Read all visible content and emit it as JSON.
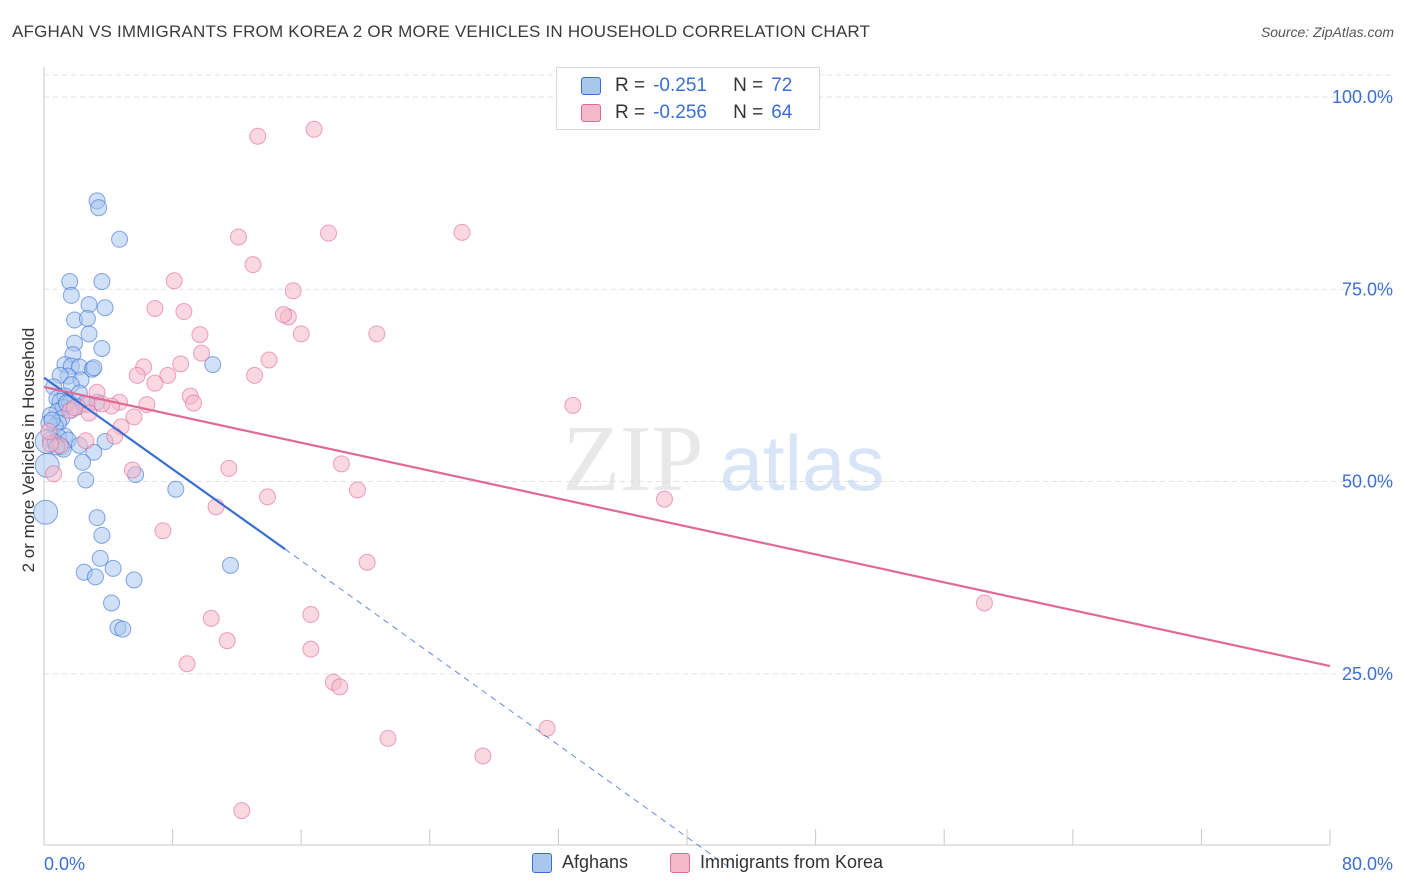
{
  "title": "AFGHAN VS IMMIGRANTS FROM KOREA 2 OR MORE VEHICLES IN HOUSEHOLD CORRELATION CHART",
  "source": "Source: ZipAtlas.com",
  "watermark": {
    "zip": "ZIP",
    "atlas": "atlas"
  },
  "stats": [
    {
      "r_label": "R =",
      "r_value": "-0.251",
      "n_label": "N =",
      "n_value": "72"
    },
    {
      "r_label": "R =",
      "r_value": "-0.256",
      "n_label": "N =",
      "n_value": "64"
    }
  ],
  "legend": {
    "afghans": "Afghans",
    "korea": "Immigrants from Korea"
  },
  "colors": {
    "blue": "#3a6fd4",
    "blue_fill": "#a9c6ee",
    "pink": "#e06a93",
    "pink_fill": "#f4b8cb",
    "grid": "#e2e2e2",
    "axis_text": "#3a6fd4"
  },
  "chart_data": {
    "type": "scatter",
    "xlabel": "",
    "ylabel": "2 or more Vehicles in Household",
    "xlim": [
      0,
      80
    ],
    "ylim": [
      0,
      105
    ],
    "x_tick_labels": [
      "0.0%",
      "80.0%"
    ],
    "y_ticks": [
      25,
      50,
      75,
      100
    ],
    "y_tick_labels": [
      "25.0%",
      "50.0%",
      "75.0%",
      "100.0%"
    ],
    "grid": true,
    "series": [
      {
        "name": "Afghans",
        "color": "#3a6fd4",
        "points": [
          [
            3.3,
            86.5
          ],
          [
            3.4,
            85.6
          ],
          [
            4.7,
            81.5
          ],
          [
            1.6,
            76.0
          ],
          [
            3.6,
            76.0
          ],
          [
            1.7,
            74.2
          ],
          [
            2.8,
            73.0
          ],
          [
            3.8,
            72.6
          ],
          [
            1.9,
            71.0
          ],
          [
            2.7,
            71.2
          ],
          [
            2.8,
            69.2
          ],
          [
            1.9,
            68.0
          ],
          [
            3.6,
            67.3
          ],
          [
            1.8,
            66.5
          ],
          [
            1.3,
            65.2
          ],
          [
            1.7,
            65.0
          ],
          [
            2.2,
            64.9
          ],
          [
            3.0,
            64.6
          ],
          [
            3.1,
            64.8
          ],
          [
            1.5,
            63.7
          ],
          [
            1.0,
            63.8
          ],
          [
            2.3,
            63.2
          ],
          [
            1.7,
            62.6
          ],
          [
            0.6,
            62.3
          ],
          [
            2.2,
            61.5
          ],
          [
            0.8,
            60.8
          ],
          [
            1.3,
            61.1
          ],
          [
            1.0,
            60.4
          ],
          [
            1.6,
            60.2
          ],
          [
            2.5,
            60.1
          ],
          [
            3.3,
            60.3
          ],
          [
            1.2,
            59.6
          ],
          [
            0.8,
            59.1
          ],
          [
            1.7,
            59.3
          ],
          [
            2.1,
            59.7
          ],
          [
            0.4,
            58.6
          ],
          [
            1.1,
            58.2
          ],
          [
            0.9,
            57.6
          ],
          [
            0.7,
            57.2
          ],
          [
            0.3,
            57.6
          ],
          [
            1.3,
            55.9
          ],
          [
            0.9,
            55.8
          ],
          [
            0.4,
            55.4
          ],
          [
            0.2,
            55.2
          ],
          [
            0.7,
            55.1
          ],
          [
            1.5,
            55.4
          ],
          [
            3.8,
            55.2
          ],
          [
            2.2,
            54.7
          ],
          [
            1.1,
            54.5
          ],
          [
            1.2,
            54.2
          ],
          [
            0.8,
            54.5
          ],
          [
            3.1,
            53.8
          ],
          [
            2.4,
            52.5
          ],
          [
            5.7,
            50.9
          ],
          [
            8.2,
            49.0
          ],
          [
            2.6,
            50.2
          ],
          [
            3.3,
            45.3
          ],
          [
            3.6,
            43.0
          ],
          [
            3.5,
            40.0
          ],
          [
            4.3,
            38.7
          ],
          [
            2.5,
            38.2
          ],
          [
            3.2,
            37.6
          ],
          [
            5.6,
            37.2
          ],
          [
            11.6,
            39.1
          ],
          [
            4.2,
            34.2
          ],
          [
            4.6,
            31.0
          ],
          [
            4.9,
            30.8
          ],
          [
            10.5,
            65.2
          ],
          [
            0.1,
            46.0
          ],
          [
            0.2,
            52.1
          ],
          [
            0.5,
            58.0
          ],
          [
            1.4,
            60.2
          ]
        ]
      },
      {
        "name": "Immigrants from Korea",
        "color": "#e06a93",
        "points": [
          [
            16.8,
            95.8
          ],
          [
            13.3,
            94.9
          ],
          [
            26.0,
            82.4
          ],
          [
            17.7,
            82.3
          ],
          [
            12.1,
            81.8
          ],
          [
            13.0,
            78.2
          ],
          [
            8.1,
            76.1
          ],
          [
            15.5,
            74.8
          ],
          [
            6.9,
            72.5
          ],
          [
            8.7,
            72.1
          ],
          [
            15.2,
            71.4
          ],
          [
            14.9,
            71.7
          ],
          [
            16.0,
            69.2
          ],
          [
            9.7,
            69.1
          ],
          [
            20.7,
            69.2
          ],
          [
            9.8,
            66.7
          ],
          [
            14.0,
            65.8
          ],
          [
            8.5,
            65.3
          ],
          [
            6.2,
            64.9
          ],
          [
            7.7,
            63.8
          ],
          [
            5.8,
            63.8
          ],
          [
            13.1,
            63.8
          ],
          [
            6.9,
            62.8
          ],
          [
            9.1,
            61.1
          ],
          [
            3.3,
            61.6
          ],
          [
            4.7,
            60.3
          ],
          [
            6.4,
            60.0
          ],
          [
            2.7,
            60.0
          ],
          [
            32.9,
            59.9
          ],
          [
            4.2,
            59.8
          ],
          [
            1.6,
            59.2
          ],
          [
            2.8,
            58.9
          ],
          [
            5.6,
            58.4
          ],
          [
            4.8,
            57.1
          ],
          [
            4.4,
            55.9
          ],
          [
            2.6,
            55.3
          ],
          [
            1.0,
            54.7
          ],
          [
            5.5,
            51.5
          ],
          [
            11.5,
            51.7
          ],
          [
            18.5,
            52.3
          ],
          [
            0.6,
            51.0
          ],
          [
            13.9,
            48.0
          ],
          [
            19.5,
            48.9
          ],
          [
            10.7,
            46.7
          ],
          [
            38.6,
            47.7
          ],
          [
            7.4,
            43.6
          ],
          [
            20.1,
            39.5
          ],
          [
            58.5,
            34.2
          ],
          [
            10.4,
            32.2
          ],
          [
            16.6,
            32.7
          ],
          [
            11.4,
            29.3
          ],
          [
            16.6,
            28.2
          ],
          [
            8.9,
            26.3
          ],
          [
            18.0,
            23.9
          ],
          [
            18.4,
            23.3
          ],
          [
            31.3,
            17.9
          ],
          [
            21.4,
            16.6
          ],
          [
            27.3,
            14.3
          ],
          [
            12.3,
            7.2
          ],
          [
            0.4,
            54.9
          ],
          [
            0.3,
            56.5
          ],
          [
            1.9,
            59.6
          ],
          [
            3.6,
            60.1
          ],
          [
            9.3,
            60.2
          ]
        ]
      }
    ],
    "trendlines": [
      {
        "series": "Afghans",
        "x": [
          0,
          15
        ],
        "y": [
          63.5,
          41.2
        ],
        "style": "solid"
      },
      {
        "series": "Afghans",
        "x": [
          15,
          42.5
        ],
        "y": [
          41.2,
          0
        ],
        "style": "dashed"
      },
      {
        "series": "Immigrants from Korea",
        "x": [
          0,
          80
        ],
        "y": [
          62.3,
          26.0
        ],
        "style": "solid"
      }
    ]
  }
}
